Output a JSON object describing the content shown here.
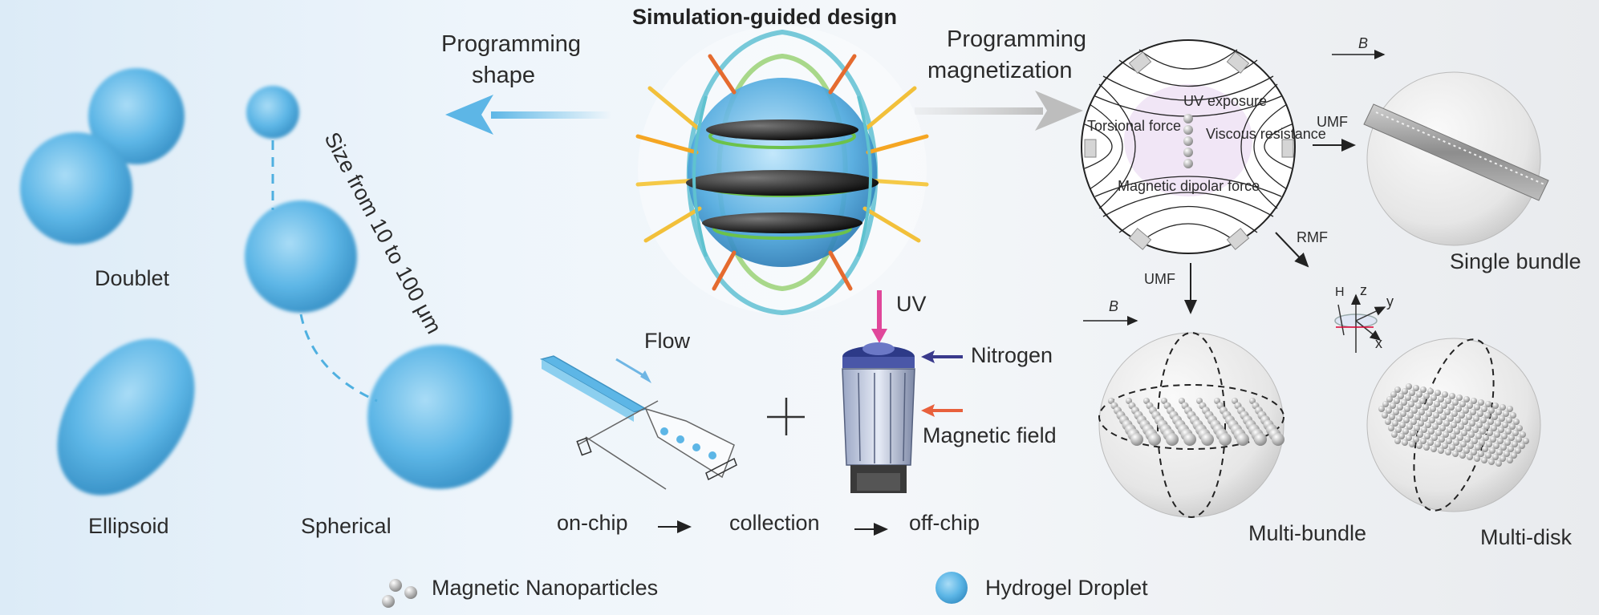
{
  "title": "Simulation-guided design",
  "programming_shape": [
    "Programming",
    "shape"
  ],
  "programming_magnetization": [
    "Programming",
    "magnetization"
  ],
  "shapes": {
    "doublet": "Doublet",
    "ellipsoid": "Ellipsoid",
    "spherical": "Spherical",
    "size_range": "Size from 10  to 100 μm"
  },
  "fabrication": {
    "flow": "Flow",
    "uv": "UV",
    "nitrogen": "Nitrogen",
    "magnetic_field": "Magnetic field",
    "steps": [
      "on-chip",
      "collection",
      "off-chip"
    ]
  },
  "forces": {
    "uv_exposure": "UV exposure",
    "torsional": "Torsional force",
    "viscous": "Viscous resistance",
    "dipolar": "Magnetic dipolar force"
  },
  "fields": {
    "b": "B",
    "umf": "UMF",
    "rmf": "RMF",
    "axes": [
      "H",
      "z",
      "y",
      "x"
    ]
  },
  "structures": {
    "single_bundle": "Single bundle",
    "multi_bundle": "Multi-bundle",
    "multi_disk": "Multi-disk"
  },
  "legend": {
    "nanoparticles": "Magnetic Nanoparticles",
    "droplet": "Hydrogel Droplet"
  },
  "colors": {
    "droplet": "#5db6e6",
    "arrow_blue": "#6fc3ea",
    "arrow_gray": "#c8c8c8",
    "text": "#2b2b2b",
    "uv": "#e0479a",
    "nitrogen": "#3a3a8c",
    "field": "#e8603c"
  }
}
